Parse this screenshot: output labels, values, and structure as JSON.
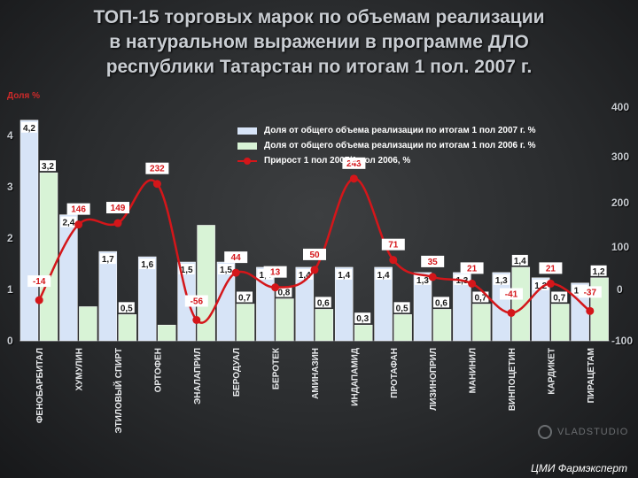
{
  "title_lines": [
    "ТОП-15 торговых марок по объемам реализации",
    "в натуральном выражении в программе ДЛО",
    "республики Татарстан по итогам 1 пол. 2007 г."
  ],
  "footer": "ЦМИ Фармэксперт",
  "watermark": "VLADSTUDIO",
  "colors": {
    "series2007": "#d7e4f7",
    "series2006": "#d8f3d6",
    "growth": "#d4161a",
    "text": "#c9cdd2"
  },
  "chart_data": {
    "type": "bar",
    "title": "ТОП-15 торговых марок по объемам реализации в натуральном выражении в программе ДЛО республики Татарстан по итогам 1 пол. 2007 г.",
    "ylabel": "Доля %",
    "ylim": [
      0,
      4.5
    ],
    "y2lim": [
      -100,
      400
    ],
    "left_ticks": [
      "0",
      "1",
      "2",
      "3",
      "4"
    ],
    "right_ticks": [
      "-100",
      "0",
      "100",
      "200",
      "300",
      "400"
    ],
    "categories": [
      "ФЕНОБАРБИТАЛ",
      "ХУМУЛИН",
      "ЭТИЛОВЫЙ СПИРТ",
      "ОРТОФЕН",
      "ЭНАЛАПРИЛ",
      "БЕРОДУАЛ",
      "БЕРОТЕК",
      "АМИНАЗИН",
      "ИНДАПАМИД",
      "ПРОТАФАН",
      "ЛИЗИНОПРИЛ",
      "МАНИНИЛ",
      "ВИНПОЦЕТИН",
      "КАРДИКЕТ",
      "ПИРАЦЕТАМ"
    ],
    "series": [
      {
        "name": "Доля от общего объема реализации по итогам 1 пол 2007 г. %",
        "values": [
          4.2,
          2.4,
          1.7,
          1.6,
          1.5,
          1.5,
          1.4,
          1.4,
          1.4,
          1.4,
          1.3,
          1.3,
          1.3,
          1.2,
          1.1
        ]
      },
      {
        "name": "Доля от общего объема реализации по итогам 1 пол 2006 г. %",
        "values": [
          3.2,
          0.65,
          0.5,
          0.3,
          2.2,
          0.7,
          0.8,
          0.6,
          0.3,
          0.5,
          0.6,
          0.7,
          1.4,
          0.7,
          1.2
        ]
      },
      {
        "name": "Прирост 1 пол 2007/1 пол 2006, %",
        "values": [
          -14,
          146,
          149,
          232,
          -56,
          44,
          13,
          50,
          243,
          71,
          35,
          21,
          -41,
          21,
          -37
        ]
      }
    ],
    "bar2007_labels": [
      "4,2",
      "2,4",
      "1,7",
      "1,6",
      "1,5",
      "1,5",
      "1,4",
      "1,4",
      "1,4",
      "1,4",
      "1,3",
      "1,3",
      "1,3",
      "1,2",
      "1,1"
    ],
    "bar2006_labels": [
      "3,2",
      "",
      "0,5",
      "",
      "",
      "0,7",
      "0,8",
      "0,6",
      "0,3",
      "0,5",
      "0,6",
      "0,7",
      "1,4",
      "0,7",
      "1,2"
    ],
    "growth_labels": [
      "-14",
      "146",
      "149",
      "232",
      "-56",
      "44",
      "13",
      "50",
      "243",
      "71",
      "35",
      "21",
      "-41",
      "21",
      "-37"
    ],
    "legend_position": "top-right"
  }
}
